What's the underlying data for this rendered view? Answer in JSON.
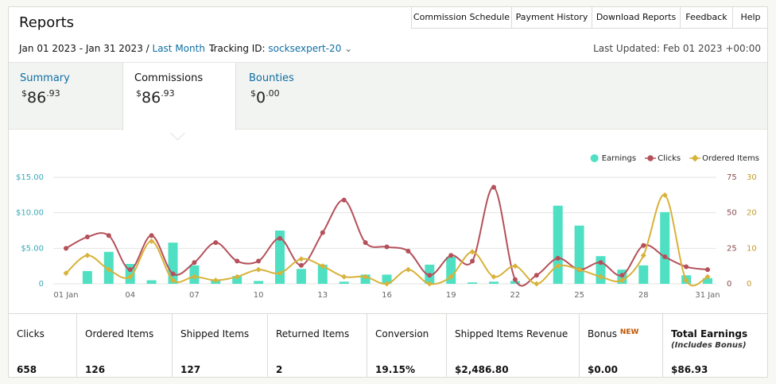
{
  "header": {
    "title": "Reports",
    "nav": [
      "Commission Schedule",
      "Payment History",
      "Download Reports",
      "Feedback",
      "Help"
    ]
  },
  "filters": {
    "date_range": "Jan 01 2023 - Jan 31 2023 /",
    "period": "Last Month",
    "tracking_label": "Tracking ID:",
    "tracking_id": "socksexpert-20",
    "last_updated": "Last Updated: Feb 01 2023 +00:00"
  },
  "tabs": [
    {
      "label": "Summary",
      "symbol": "$",
      "whole": "86",
      "fraction": ".93"
    },
    {
      "label": "Commissions",
      "symbol": "$",
      "whole": "86",
      "fraction": ".93"
    },
    {
      "label": "Bounties",
      "symbol": "$",
      "whole": "0",
      "fraction": ".00"
    }
  ],
  "chart_data": {
    "type": "bar_line",
    "categories": [
      "01 Jan",
      null,
      null,
      "04",
      null,
      null,
      "07",
      null,
      null,
      "10",
      null,
      null,
      "13",
      null,
      null,
      "16",
      null,
      null,
      "19",
      null,
      null,
      "22",
      null,
      null,
      "25",
      null,
      null,
      "28",
      null,
      null,
      "31 Jan"
    ],
    "series": [
      {
        "name": "Earnings",
        "color": "#4fe0c3",
        "kind": "bar",
        "axis": "y",
        "values": [
          0,
          1.8,
          4.5,
          2.8,
          0.5,
          5.8,
          2.6,
          0.5,
          1.1,
          0.4,
          7.5,
          2.1,
          2.7,
          0.3,
          1.3,
          1.3,
          0,
          2.7,
          3.8,
          0.2,
          0.3,
          0.4,
          0,
          11.0,
          8.2,
          3.9,
          2.0,
          2.6,
          10.1,
          1.2,
          0.8
        ]
      },
      {
        "name": "Clicks",
        "color": "#b5505a",
        "kind": "line",
        "axis": "y2",
        "values": [
          25,
          33,
          34,
          10,
          34,
          7,
          15,
          29,
          16,
          16,
          32,
          13,
          36,
          59,
          29,
          26,
          23,
          6,
          20,
          16,
          68,
          3,
          6,
          18,
          10,
          15,
          6,
          27,
          19,
          12,
          10
        ]
      },
      {
        "name": "Ordered Items",
        "color": "#d8b23a",
        "kind": "line",
        "axis": "y3",
        "values": [
          3,
          8,
          4,
          2,
          12,
          1,
          2,
          1,
          2,
          4,
          3,
          7,
          5,
          2,
          2,
          0,
          4,
          0,
          2,
          9,
          2,
          5,
          0,
          5,
          4,
          2,
          1,
          8,
          25,
          1,
          2
        ]
      }
    ],
    "ylim": [
      0,
      15
    ],
    "yticks": [
      0,
      {
        "value": 5,
        "label": "$5.00"
      },
      {
        "value": 10,
        "label": "$10.00"
      },
      {
        "value": 15,
        "label": "$15.00"
      }
    ],
    "y2lim": [
      0,
      75
    ],
    "y2ticks": [
      0,
      25,
      50,
      75
    ],
    "y3lim": [
      0,
      30
    ],
    "y3ticks": [
      0,
      10,
      20,
      30
    ],
    "grid": true,
    "legend": "top-right"
  },
  "stats": [
    {
      "label": "Clicks",
      "value": "658"
    },
    {
      "label": "Ordered Items",
      "value": "126"
    },
    {
      "label": "Shipped Items",
      "value": "127"
    },
    {
      "label": "Returned Items",
      "value": "2"
    },
    {
      "label": "Conversion",
      "value": "19.15%"
    },
    {
      "label": "Shipped Items Revenue",
      "value": "$2,486.80"
    },
    {
      "label": "Bonus",
      "badge": "NEW",
      "value": "$0.00"
    },
    {
      "label": "Total Earnings",
      "note": "(Includes Bonus)",
      "value": "$86.93"
    }
  ]
}
